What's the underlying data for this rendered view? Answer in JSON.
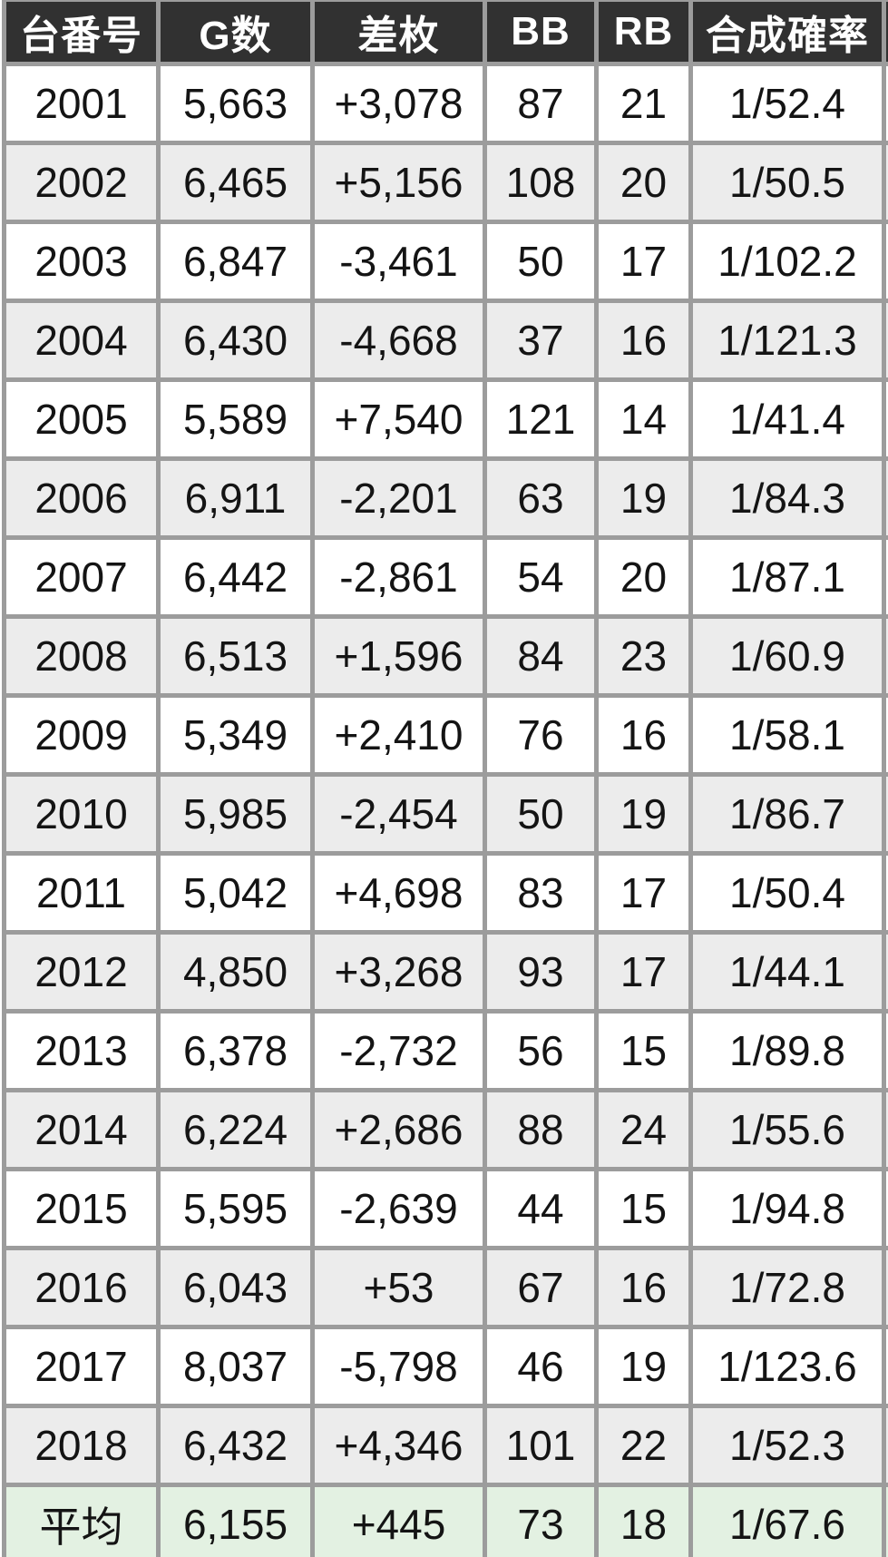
{
  "chart_data": {
    "type": "table",
    "columns": [
      "台番号",
      "G数",
      "差枚",
      "BB",
      "RB",
      "合成確率"
    ],
    "rows": [
      [
        "2001",
        "5,663",
        "+3,078",
        "87",
        "21",
        "1/52.4"
      ],
      [
        "2002",
        "6,465",
        "+5,156",
        "108",
        "20",
        "1/50.5"
      ],
      [
        "2003",
        "6,847",
        "-3,461",
        "50",
        "17",
        "1/102.2"
      ],
      [
        "2004",
        "6,430",
        "-4,668",
        "37",
        "16",
        "1/121.3"
      ],
      [
        "2005",
        "5,589",
        "+7,540",
        "121",
        "14",
        "1/41.4"
      ],
      [
        "2006",
        "6,911",
        "-2,201",
        "63",
        "19",
        "1/84.3"
      ],
      [
        "2007",
        "6,442",
        "-2,861",
        "54",
        "20",
        "1/87.1"
      ],
      [
        "2008",
        "6,513",
        "+1,596",
        "84",
        "23",
        "1/60.9"
      ],
      [
        "2009",
        "5,349",
        "+2,410",
        "76",
        "16",
        "1/58.1"
      ],
      [
        "2010",
        "5,985",
        "-2,454",
        "50",
        "19",
        "1/86.7"
      ],
      [
        "2011",
        "5,042",
        "+4,698",
        "83",
        "17",
        "1/50.4"
      ],
      [
        "2012",
        "4,850",
        "+3,268",
        "93",
        "17",
        "1/44.1"
      ],
      [
        "2013",
        "6,378",
        "-2,732",
        "56",
        "15",
        "1/89.8"
      ],
      [
        "2014",
        "6,224",
        "+2,686",
        "88",
        "24",
        "1/55.6"
      ],
      [
        "2015",
        "5,595",
        "-2,639",
        "44",
        "15",
        "1/94.8"
      ],
      [
        "2016",
        "6,043",
        "+53",
        "67",
        "16",
        "1/72.8"
      ],
      [
        "2017",
        "8,037",
        "-5,798",
        "46",
        "19",
        "1/123.6"
      ],
      [
        "2018",
        "6,432",
        "+4,346",
        "101",
        "22",
        "1/52.3"
      ]
    ],
    "summary_row": [
      "平均",
      "6,155",
      "+445",
      "73",
      "18",
      "1/67.6"
    ],
    "layout_hints": {
      "striping": "rows alternate white and light gray starting with white; summary row is light green",
      "grid": "thick gray borders on every cell",
      "partial_seventh_column": "table is cut off at the right edge showing a sliver of an additional column"
    }
  },
  "colors": {
    "header_bg": "#313131",
    "header_text": "#ffffff",
    "grid_border": "#9c9c9c",
    "row_even_bg": "#ffffff",
    "row_odd_bg": "#ececec",
    "summary_row_bg": "#e3f1e2",
    "body_text": "#141414"
  }
}
